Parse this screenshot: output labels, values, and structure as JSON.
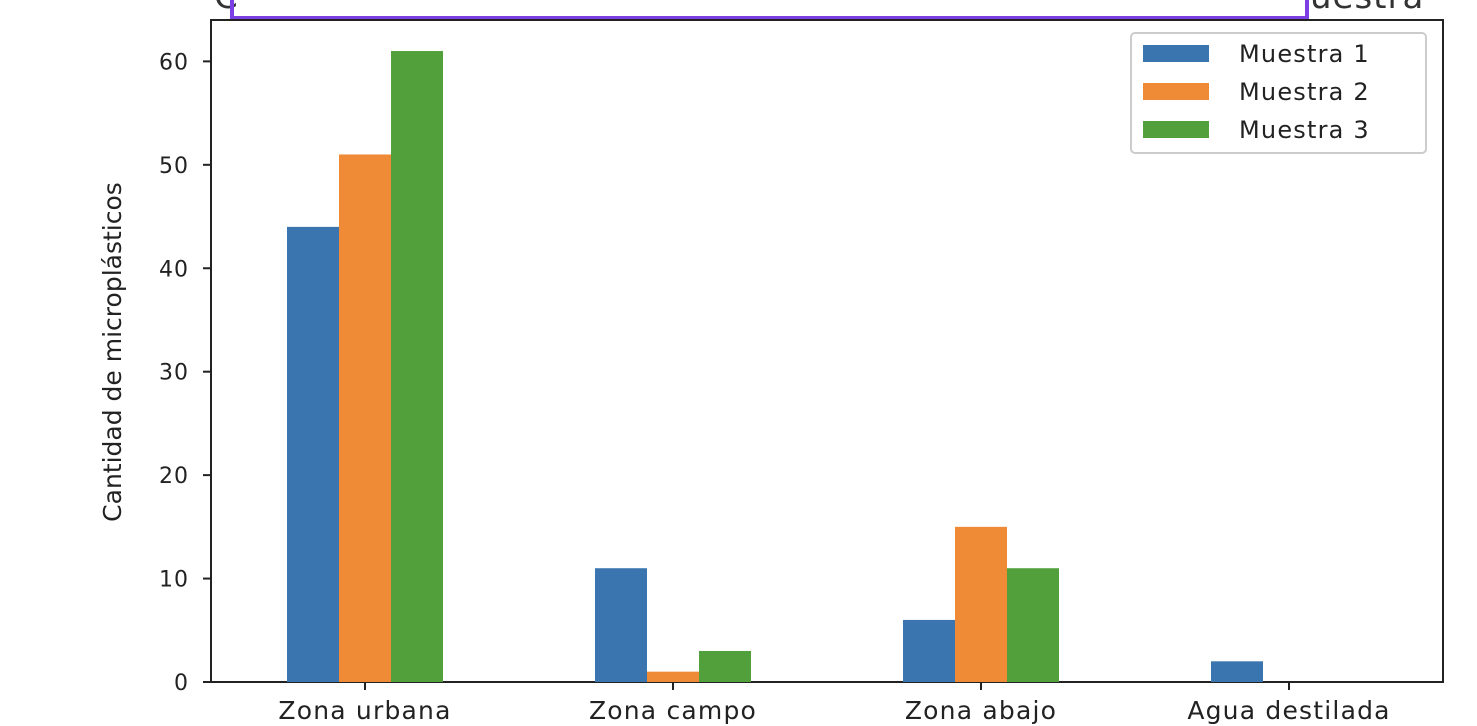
{
  "header": {
    "left_text": "C",
    "right_text": "uestra",
    "accent_color": "#7b3fe4"
  },
  "chart_data": {
    "type": "bar",
    "categories": [
      "Zona urbana",
      "Zona campo",
      "Zona abajo",
      "Agua destilada"
    ],
    "series": [
      {
        "name": "Muestra 1",
        "color": "#3a75b0",
        "values": [
          44,
          11,
          6,
          2
        ]
      },
      {
        "name": "Muestra 2",
        "color": "#ef8a36",
        "values": [
          51,
          1,
          15,
          0
        ]
      },
      {
        "name": "Muestra 3",
        "color": "#51a03b",
        "values": [
          61,
          3,
          11,
          0
        ]
      }
    ],
    "ylabel": "Cantidad de microplásticos",
    "xlabel": "",
    "ylim": [
      0,
      64
    ],
    "yticks": [
      0,
      10,
      20,
      30,
      40,
      50,
      60
    ],
    "grid": false,
    "legend_position": "top-right"
  }
}
